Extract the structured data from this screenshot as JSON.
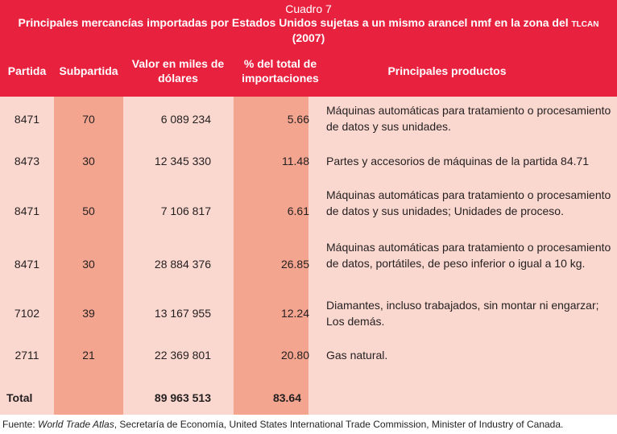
{
  "title": {
    "number": "Cuadro 7",
    "line1_prefix": "Principales mercancías importadas por Estados Unidos sujetas a un mismo arancel nmf en la zona del ",
    "line1_acronym": "TLCAN",
    "line2": "(2007)"
  },
  "columns": {
    "partida": "Partida",
    "subpartida": "Subpartida",
    "valor": "Valor en miles de dólares",
    "porcentaje": "% del total de importaciones",
    "productos": "Principales productos"
  },
  "rows": [
    {
      "partida": "8471",
      "subpartida": "70",
      "valor": "6 089 234",
      "porcentaje": "5.66",
      "producto": "Máquinas automáticas para tratamiento o procesamiento de datos y sus unidades."
    },
    {
      "partida": "8473",
      "subpartida": "30",
      "valor": "12 345 330",
      "porcentaje": "11.48",
      "producto": "Partes y accesorios de máquinas de la partida 84.71"
    },
    {
      "partida": "8471",
      "subpartida": "50",
      "valor": "7 106 817",
      "porcentaje": "6.61",
      "producto": "Máquinas automáticas para tratamiento o procesamiento de datos y sus unidades; Unidades de proceso."
    },
    {
      "partida": "8471",
      "subpartida": "30",
      "valor": "28 884 376",
      "porcentaje": "26.85",
      "producto": "Máquinas automáticas para tratamiento o procesamiento de datos, portátiles, de peso inferior o igual a 10 kg."
    },
    {
      "partida": "7102",
      "subpartida": "39",
      "valor": "13 167 955",
      "porcentaje": "12.24",
      "producto": "Diamantes, incluso trabajados, sin montar ni engarzar; Los demás."
    },
    {
      "partida": "2711",
      "subpartida": "21",
      "valor": "22 369 801",
      "porcentaje": "20.80",
      "producto": "Gas natural."
    }
  ],
  "total": {
    "label": "Total",
    "valor": "89 963 513",
    "porcentaje": "83.64"
  },
  "source": {
    "prefix": "Fuente: ",
    "italic": "World Trade Atlas",
    "rest": ", Secretaría de Economía, United States International Trade Commission, Minister of Industry of Canada."
  },
  "colors": {
    "header": "#e8213f",
    "body": "#fbd8cf",
    "band": "#f4a590",
    "text": "#231f20"
  }
}
